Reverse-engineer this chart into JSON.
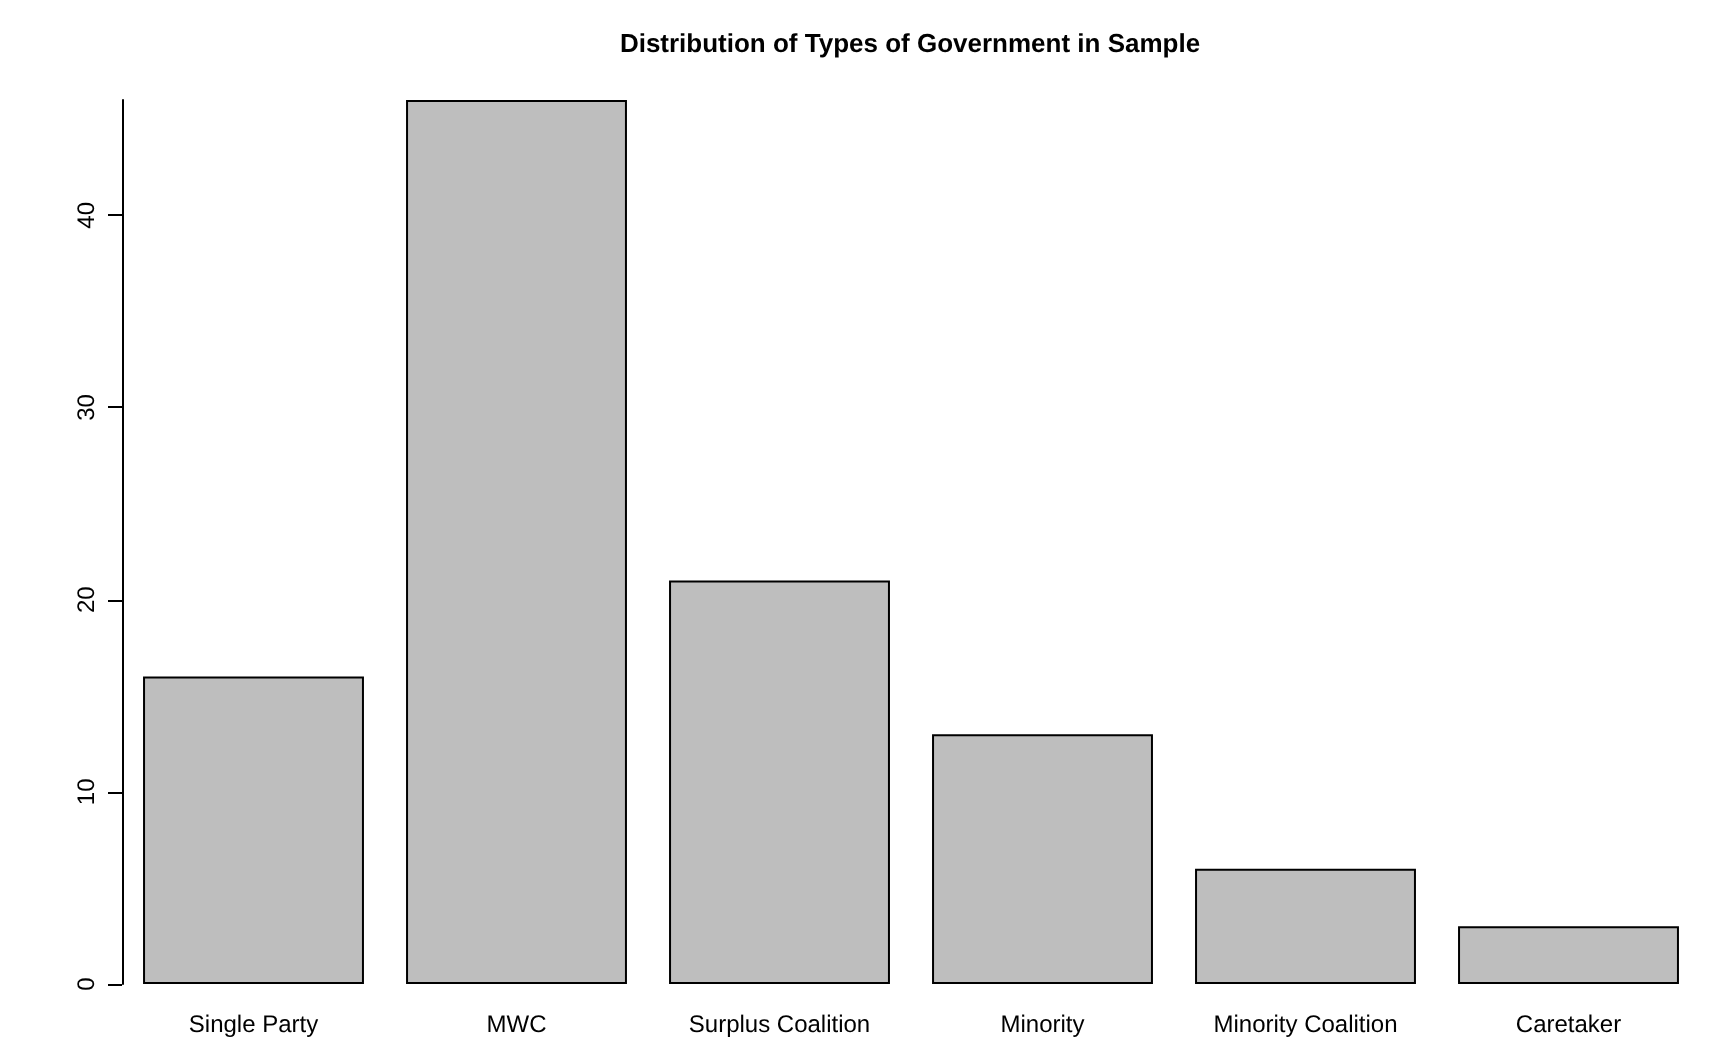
{
  "chart_data": {
    "type": "bar",
    "title": "Distribution of Types of Government in Sample",
    "categories": [
      "Single Party",
      "MWC",
      "Surplus Coalition",
      "Minority",
      "Minority Coalition",
      "Caretaker"
    ],
    "values": [
      16,
      46,
      21,
      13,
      6,
      3
    ],
    "color": "#bebebe",
    "ylim": [
      0,
      46
    ],
    "yticks": [
      0,
      10,
      20,
      30,
      40
    ],
    "grid": false
  }
}
